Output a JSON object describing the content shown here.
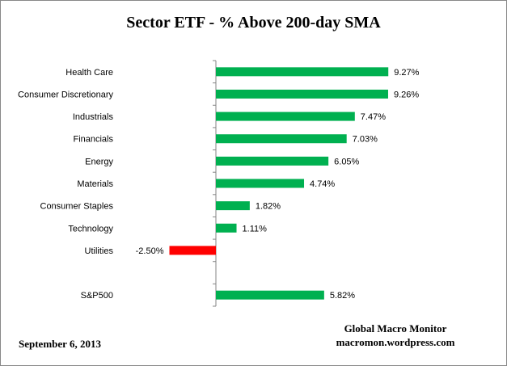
{
  "chart_data": {
    "type": "bar",
    "orientation": "horizontal",
    "title": "Sector ETF - % Above 200-day SMA",
    "categories": [
      "Health Care",
      "Consumer Discretionary",
      "Industrials",
      "Financials",
      "Energy",
      "Materials",
      "Consumer Staples",
      "Technology",
      "Utilities",
      "",
      "S&P500"
    ],
    "values": [
      9.27,
      9.26,
      7.47,
      7.03,
      6.05,
      4.74,
      1.82,
      1.11,
      -2.5,
      null,
      5.82
    ],
    "labels": [
      "9.27%",
      "9.26%",
      "7.47%",
      "7.03%",
      "6.05%",
      "4.74%",
      "1.82%",
      "1.11%",
      "-2.50%",
      "",
      "5.82%"
    ],
    "colors": {
      "positive": "#00B050",
      "negative": "#FF0000"
    },
    "xlim": [
      -4.5,
      12
    ],
    "grid": false,
    "legend": "none"
  },
  "footer": {
    "date": "September 6, 2013",
    "source_name": "Global Macro Monitor",
    "source_url": "macromon.wordpress.com"
  }
}
